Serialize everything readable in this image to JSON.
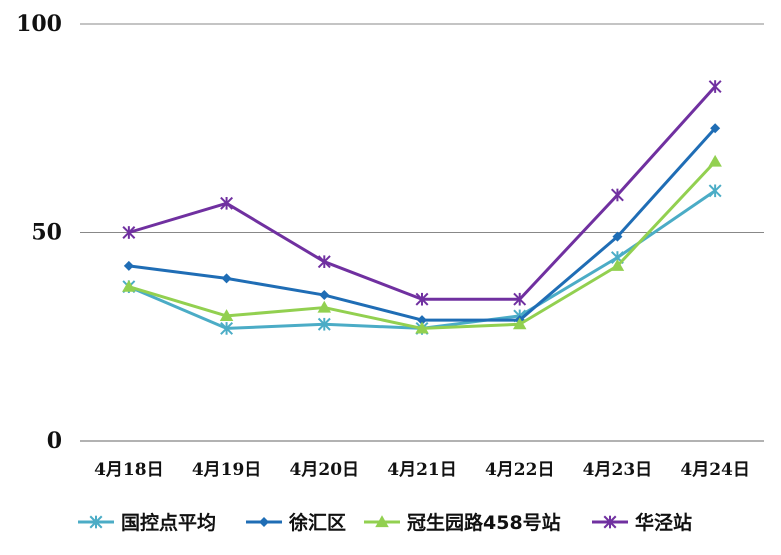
{
  "chart_data": {
    "type": "line",
    "title": "",
    "xlabel": "",
    "ylabel": "",
    "categories": [
      "4月18日",
      "4月19日",
      "4月20日",
      "4月21日",
      "4月22日",
      "4月23日",
      "4月24日"
    ],
    "ylim": [
      0,
      100
    ],
    "yticks": [
      0,
      50,
      100
    ],
    "grid": true,
    "legend_position": "bottom",
    "series": [
      {
        "name": "国控点平均",
        "color": "#4BACC6",
        "marker": "asterisk",
        "values": [
          37,
          27,
          28,
          27,
          30,
          44,
          60
        ]
      },
      {
        "name": "徐汇区",
        "color": "#1F6DB5",
        "marker": "diamond",
        "values": [
          42,
          39,
          35,
          29,
          29,
          49,
          75
        ]
      },
      {
        "name": "冠生园路458号站",
        "color": "#92D050",
        "marker": "triangle",
        "values": [
          37,
          30,
          32,
          27,
          28,
          42,
          67
        ]
      },
      {
        "name": "华泾站",
        "color": "#7030A0",
        "marker": "star",
        "values": [
          50,
          57,
          43,
          34,
          34,
          59,
          85
        ]
      }
    ]
  }
}
